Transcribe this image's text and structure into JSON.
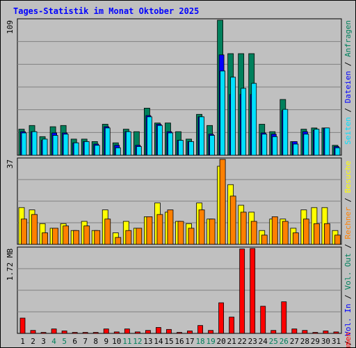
{
  "title": "Tages-Statistik im Monat Oktober 2025",
  "colors": {
    "background": "#c0c0c0",
    "grid": "#808080",
    "title": "#0000ff",
    "hits": "#00805c",
    "files": "#0000ff",
    "pages": "#00e0ff",
    "visits": "#ffff00",
    "kbytes_in_out": "#ff8000",
    "volume": "#ff0000",
    "weekend_day": "#00805c",
    "weekday": "#000000"
  },
  "chart_data": [
    {
      "type": "bar",
      "panel": "top",
      "categories": [
        "1",
        "2",
        "3",
        "4",
        "5",
        "6",
        "7",
        "8",
        "9",
        "10",
        "11",
        "12",
        "13",
        "14",
        "15",
        "16",
        "17",
        "18",
        "19",
        "20",
        "21",
        "22",
        "23",
        "24",
        "25",
        "26",
        "27",
        "28",
        "29",
        "30",
        "31"
      ],
      "ymax": 109,
      "ymax_label": "109",
      "series": [
        {
          "name": "Anfragen",
          "values": [
            21,
            24,
            15,
            23,
            24,
            13,
            13,
            11,
            25,
            10,
            21,
            19,
            38,
            26,
            26,
            19,
            13,
            33,
            24,
            109,
            82,
            82,
            82,
            25,
            19,
            45,
            11,
            21,
            22,
            22,
            8
          ]
        },
        {
          "name": "Dateien",
          "values": [
            19,
            19,
            12,
            18,
            18,
            10,
            11,
            9,
            23,
            8,
            19,
            8,
            32,
            25,
            19,
            12,
            11,
            31,
            17,
            81,
            49,
            49,
            49,
            18,
            17,
            36,
            11,
            19,
            20,
            22,
            7
          ]
        },
        {
          "name": "Seiten",
          "values": [
            18,
            19,
            13,
            16,
            17,
            10,
            11,
            8,
            22,
            6,
            19,
            7,
            31,
            24,
            18,
            12,
            11,
            31,
            16,
            68,
            63,
            54,
            58,
            17,
            15,
            37,
            9,
            17,
            21,
            22,
            6
          ]
        }
      ]
    },
    {
      "type": "bar",
      "panel": "middle",
      "categories": [
        "1",
        "2",
        "3",
        "4",
        "5",
        "6",
        "7",
        "8",
        "9",
        "10",
        "11",
        "12",
        "13",
        "14",
        "15",
        "16",
        "17",
        "18",
        "19",
        "20",
        "21",
        "22",
        "23",
        "24",
        "25",
        "26",
        "27",
        "28",
        "29",
        "30",
        "31"
      ],
      "ymax": 37,
      "ymax_label": "37",
      "series": [
        {
          "name": "Besuche",
          "values": [
            16,
            15,
            9,
            7,
            9,
            6,
            10,
            6,
            15,
            5,
            10,
            7,
            12,
            18,
            14,
            10,
            9,
            18,
            11,
            34,
            26,
            17,
            14,
            6,
            11,
            11,
            7,
            15,
            16,
            16,
            6
          ]
        },
        {
          "name": "Rechner",
          "values": [
            11,
            13,
            5,
            7,
            8,
            6,
            8,
            6,
            11,
            3,
            6,
            7,
            12,
            13,
            15,
            10,
            7,
            15,
            11,
            37,
            21,
            14,
            10,
            4,
            12,
            10,
            5,
            11,
            9,
            9,
            4
          ]
        }
      ]
    },
    {
      "type": "bar",
      "panel": "bottom",
      "categories": [
        "1",
        "2",
        "3",
        "4",
        "5",
        "6",
        "7",
        "8",
        "9",
        "10",
        "11",
        "12",
        "13",
        "14",
        "15",
        "16",
        "17",
        "18",
        "19",
        "20",
        "21",
        "22",
        "23",
        "24",
        "25",
        "26",
        "27",
        "28",
        "29",
        "30",
        "31"
      ],
      "ymax": 1.72,
      "ymax_label": "1.72 MB",
      "series": [
        {
          "name": "Volumen",
          "values": [
            0.31,
            0.06,
            0.02,
            0.09,
            0.05,
            0.02,
            0.02,
            0.02,
            0.09,
            0.03,
            0.09,
            0.03,
            0.06,
            0.12,
            0.08,
            0.02,
            0.05,
            0.16,
            0.06,
            0.62,
            0.33,
            1.71,
            1.72,
            0.55,
            0.06,
            0.64,
            0.09,
            0.06,
            0.02,
            0.05,
            0.03
          ]
        }
      ]
    }
  ],
  "weekend_days": [
    "4",
    "5",
    "11",
    "12",
    "18",
    "19",
    "25",
    "26"
  ],
  "right_labels": {
    "top": [
      {
        "text": "Anfragen",
        "color": "#00805c"
      },
      {
        "text": "/",
        "color": "#000000"
      },
      {
        "text": "Dateien",
        "color": "#0000ff"
      },
      {
        "text": "/",
        "color": "#000000"
      },
      {
        "text": "Seiten",
        "color": "#00e0ff"
      }
    ],
    "middle": [
      {
        "text": "Besuche",
        "color": "#ffff00"
      },
      {
        "text": "/",
        "color": "#000000"
      },
      {
        "text": "Rechner",
        "color": "#ff8000"
      },
      {
        "text": "/",
        "color": "#000000"
      },
      {
        "text": "Vol. Out",
        "color": "#00805c"
      },
      {
        "text": "/",
        "color": "#000000"
      },
      {
        "text": "Vol. In",
        "color": "#0000ff"
      },
      {
        "text": "/",
        "color": "#000000"
      }
    ],
    "bottom": [
      {
        "text": "Volumen",
        "color": "#ff0000"
      }
    ]
  }
}
